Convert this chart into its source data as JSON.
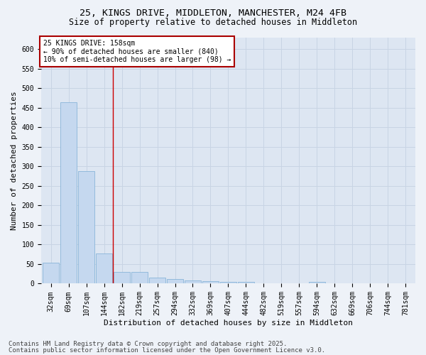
{
  "title_line1": "25, KINGS DRIVE, MIDDLETON, MANCHESTER, M24 4FB",
  "title_line2": "Size of property relative to detached houses in Middleton",
  "xlabel": "Distribution of detached houses by size in Middleton",
  "ylabel": "Number of detached properties",
  "bar_color": "#c5d8ef",
  "bar_edge_color": "#7aadd4",
  "categories": [
    "32sqm",
    "69sqm",
    "107sqm",
    "144sqm",
    "182sqm",
    "219sqm",
    "257sqm",
    "294sqm",
    "332sqm",
    "369sqm",
    "407sqm",
    "444sqm",
    "482sqm",
    "519sqm",
    "557sqm",
    "594sqm",
    "632sqm",
    "669sqm",
    "706sqm",
    "744sqm",
    "781sqm"
  ],
  "values": [
    53,
    463,
    287,
    77,
    30,
    30,
    15,
    12,
    9,
    6,
    5,
    5,
    0,
    0,
    0,
    4,
    0,
    0,
    0,
    0,
    0
  ],
  "ylim": [
    0,
    630
  ],
  "yticks": [
    0,
    50,
    100,
    150,
    200,
    250,
    300,
    350,
    400,
    450,
    500,
    550,
    600
  ],
  "red_line_index": 3.5,
  "annotation_text": "25 KINGS DRIVE: 158sqm\n← 90% of detached houses are smaller (840)\n10% of semi-detached houses are larger (98) →",
  "annotation_box_color": "#ffffff",
  "annotation_box_edge": "#aa0000",
  "background_color": "#eef2f8",
  "plot_bg_color": "#dde6f2",
  "grid_color": "#c8d4e4",
  "footer_line1": "Contains HM Land Registry data © Crown copyright and database right 2025.",
  "footer_line2": "Contains public sector information licensed under the Open Government Licence v3.0.",
  "title_fontsize": 9.5,
  "subtitle_fontsize": 8.5,
  "xlabel_fontsize": 8,
  "ylabel_fontsize": 8,
  "tick_fontsize": 7,
  "annot_fontsize": 7,
  "footer_fontsize": 6.5
}
